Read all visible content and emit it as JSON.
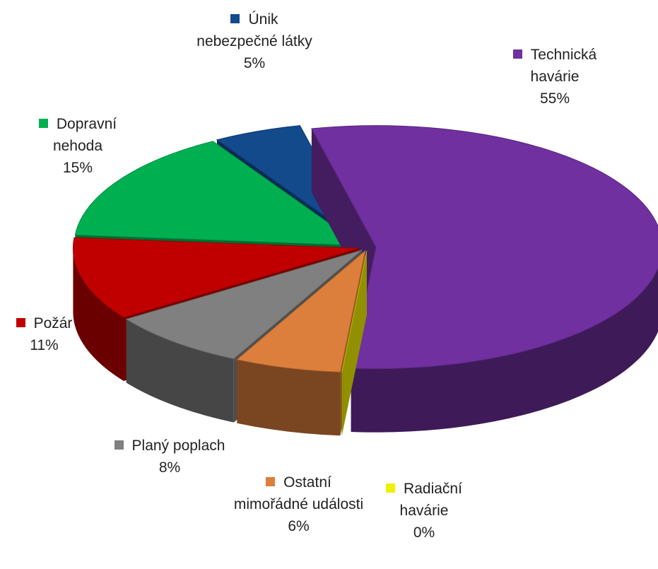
{
  "chart_data": {
    "type": "pie",
    "categories": [
      "Technická havárie",
      "Radiační havárie",
      "Ostatní mimořádné události",
      "Planý poplach",
      "Požár",
      "Dopravní nehoda",
      "Únik nebezpečné látky"
    ],
    "values": [
      55,
      0,
      6,
      8,
      11,
      15,
      5
    ],
    "value_labels": [
      "55%",
      "0%",
      "6%",
      "8%",
      "11%",
      "15%",
      "5%"
    ],
    "colors": [
      "#7030a0",
      "#f0f000",
      "#dd7f3c",
      "#808080",
      "#c00000",
      "#00b050",
      "#124a8c"
    ]
  }
}
